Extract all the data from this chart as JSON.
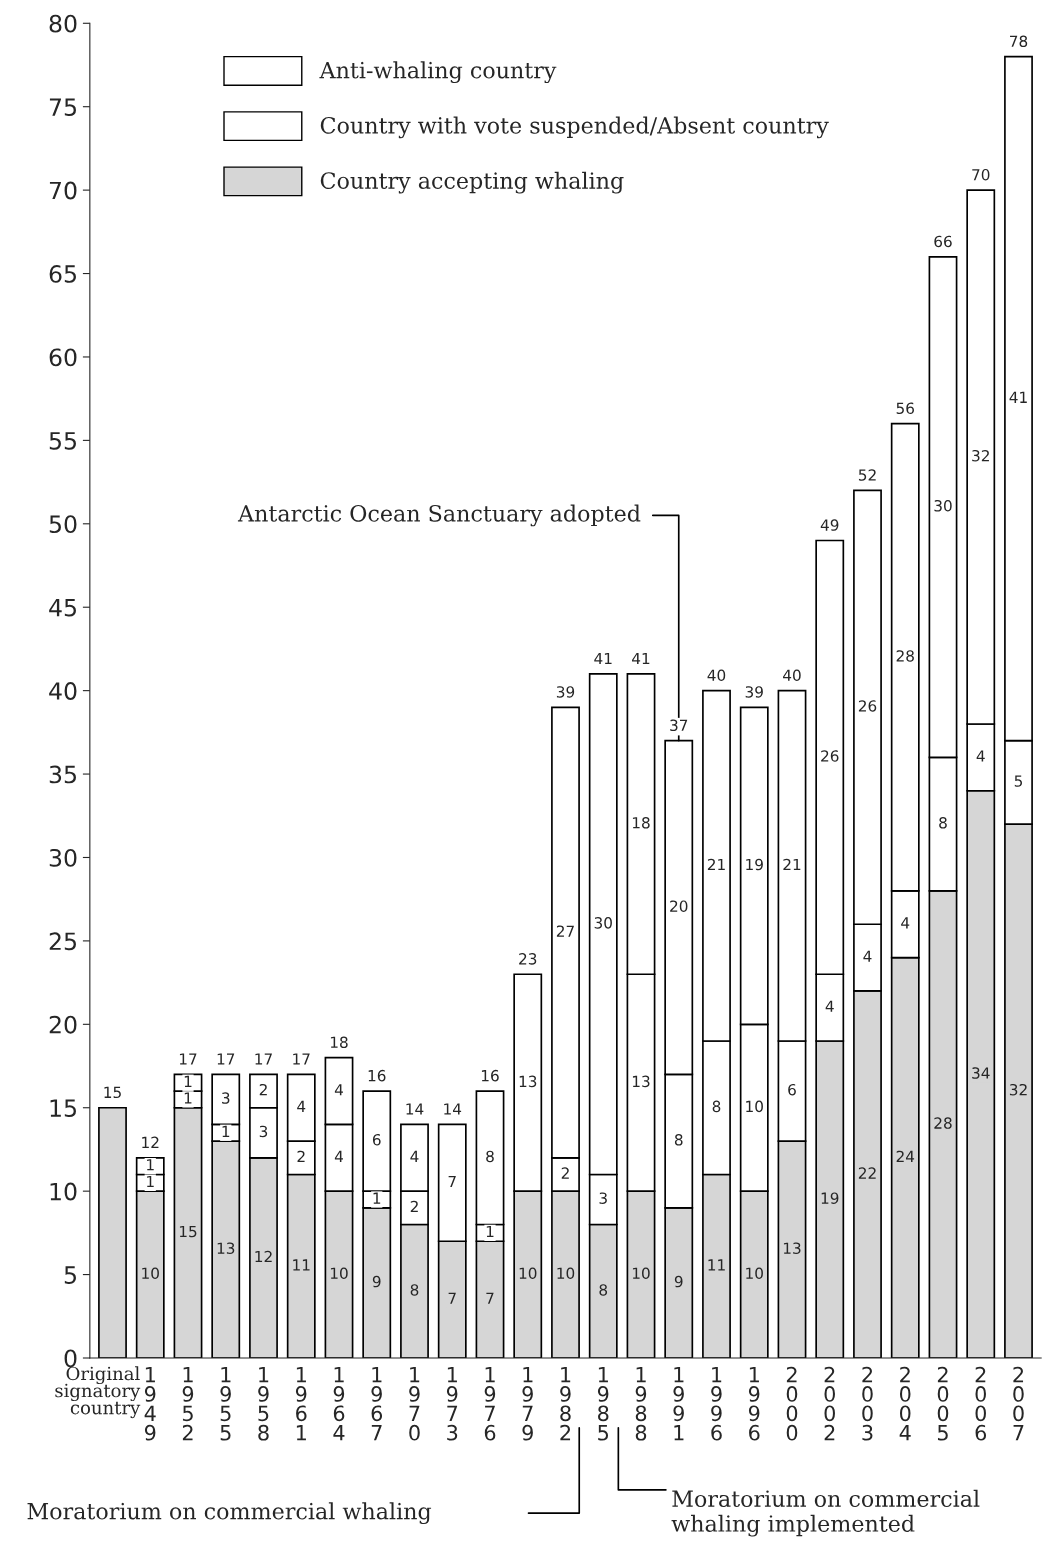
{
  "chart_data": {
    "type": "bar",
    "stacked": true,
    "categories": [
      "Original signatory country",
      "1949",
      "1952",
      "1955",
      "1958",
      "1961",
      "1964",
      "1967",
      "1970",
      "1973",
      "1976",
      "1979",
      "1982",
      "1985",
      "1988",
      "1991",
      "1996",
      "1996",
      "2000",
      "2002",
      "2003",
      "2004",
      "2005",
      "2006",
      "2007"
    ],
    "series": [
      {
        "name": "Country accepting whaling",
        "color": "#d6d6d6",
        "values": [
          15,
          10,
          15,
          13,
          12,
          11,
          10,
          9,
          8,
          7,
          7,
          10,
          10,
          8,
          10,
          9,
          11,
          10,
          13,
          19,
          22,
          24,
          28,
          34,
          32
        ],
        "value_labels": [
          null,
          "10",
          "15",
          "13",
          "12",
          "11",
          "10",
          "9",
          "8",
          "7",
          "7",
          "10",
          "10",
          "8",
          "10",
          "9",
          "11",
          "10",
          "13",
          "19",
          "22",
          "24",
          "28",
          "34",
          "32"
        ]
      },
      {
        "name": "Country with vote suspended/Absent country",
        "color": "#ffffff",
        "values": [
          0,
          1,
          1,
          1,
          3,
          2,
          4,
          1,
          2,
          0,
          1,
          0,
          2,
          3,
          13,
          8,
          8,
          10,
          6,
          4,
          4,
          4,
          8,
          4,
          5
        ],
        "value_labels": [
          null,
          "1",
          "1",
          "1",
          "3",
          "2",
          "4",
          "1",
          "2",
          null,
          "1",
          null,
          "2",
          "3",
          "13",
          "8",
          "8",
          "10",
          "6",
          "4",
          "4",
          "4",
          "8",
          "4",
          "5"
        ]
      },
      {
        "name": "Anti-whaling country",
        "color": "#ffffff",
        "values": [
          0,
          1,
          1,
          3,
          2,
          4,
          4,
          6,
          4,
          7,
          8,
          13,
          27,
          30,
          18,
          20,
          21,
          19,
          21,
          26,
          26,
          28,
          30,
          32,
          41
        ],
        "value_labels": [
          null,
          "1",
          "1",
          "3",
          "2",
          "4",
          "4",
          "6",
          "4",
          "7",
          "8",
          "13",
          "27",
          "30",
          "18",
          "20",
          "21",
          "19",
          "21",
          "26",
          "26",
          "28",
          "30",
          "32",
          "41"
        ]
      }
    ],
    "totals": [
      "15",
      "12",
      "17",
      "17",
      "17",
      "17",
      "18",
      "16",
      "14",
      "14",
      "16",
      "23",
      "39",
      "41",
      "41",
      "37",
      "40",
      "39",
      "40",
      "49",
      "52",
      "56",
      "66",
      "70",
      "78"
    ],
    "ylim": [
      0,
      80
    ],
    "yticks": [
      0,
      5,
      10,
      15,
      20,
      25,
      30,
      35,
      40,
      45,
      50,
      55,
      60,
      65,
      70,
      75,
      80
    ],
    "grid": false,
    "legend": "top left",
    "annotations": [
      {
        "text": "Antarctic Ocean Sanctuary adopted",
        "x": "1991",
        "y": 37
      },
      "Moratorium on commercial whaling",
      "Moratorium on commercial whaling implemented"
    ]
  }
}
